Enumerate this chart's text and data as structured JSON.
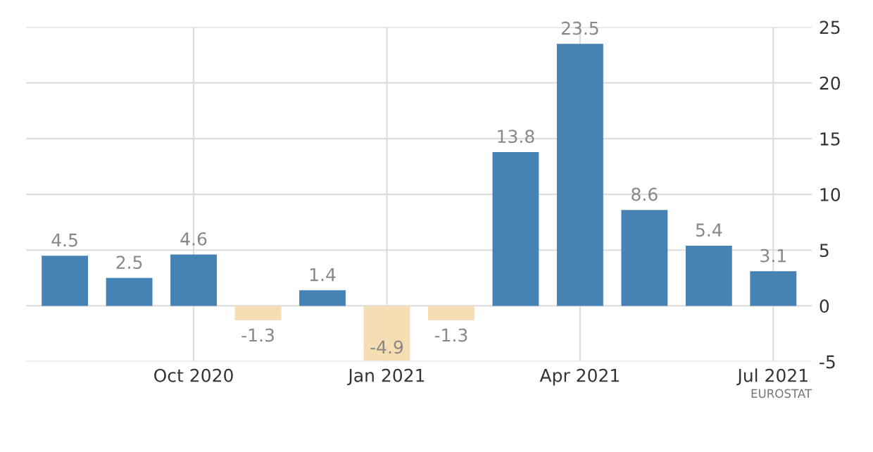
{
  "chart_data": {
    "type": "bar",
    "categories": [
      null,
      null,
      "Oct 2020",
      null,
      null,
      "Jan 2021",
      null,
      null,
      "Apr 2021",
      null,
      null,
      "Jul 2021"
    ],
    "values": [
      4.5,
      2.5,
      4.6,
      -1.3,
      1.4,
      -4.9,
      -1.3,
      13.8,
      23.5,
      8.6,
      5.4,
      3.1
    ],
    "colors": [
      "#4682b4",
      "#4682b4",
      "#4682b4",
      "#f5deb3",
      "#4682b4",
      "#f5deb3",
      "#f5deb3",
      "#4682b4",
      "#4682b4",
      "#4682b4",
      "#4682b4",
      "#4682b4"
    ],
    "data_labels": true,
    "ylim": [
      -5,
      25
    ],
    "yticks": [
      -5,
      0,
      5,
      10,
      15,
      20,
      25
    ],
    "grid": true,
    "legend": false,
    "annotations": [
      "EUROSTAT"
    ]
  }
}
